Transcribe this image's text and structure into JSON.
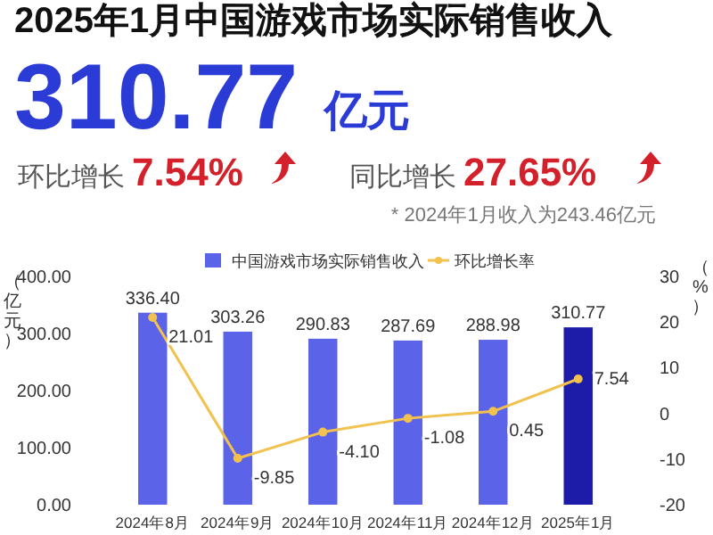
{
  "chart_data": {
    "type": "bar",
    "title": "2025年1月中国游戏市场实际销售收入",
    "annotations": [
      "310.77",
      "亿元",
      "环比增长",
      "7.54%",
      "同比增长",
      "27.65%",
      "* 2024年1月收入为243.46亿元"
    ],
    "categories": [
      "2024年8月",
      "2024年9月",
      "2024年10月",
      "2024年11月",
      "2024年12月",
      "2025年1月"
    ],
    "series": [
      {
        "name": "中国游戏市场实际销售收入",
        "color": "#5b63e8",
        "colors": [
          "#5b63e8",
          "#5b63e8",
          "#5b63e8",
          "#5b63e8",
          "#5b63e8",
          "#1c1ca8"
        ],
        "values": [
          336.4,
          303.26,
          290.83,
          287.69,
          288.98,
          310.77
        ],
        "value_labels": [
          "336.40",
          "303.26",
          "290.83",
          "287.69",
          "288.98",
          "310.77"
        ]
      },
      {
        "name": "环比增长率",
        "type": "line",
        "axis": "y2",
        "color": "#f2c14e",
        "values": [
          21.01,
          -9.85,
          -4.1,
          -1.08,
          0.45,
          7.54
        ],
        "value_labels": [
          "21.01",
          "-9.85",
          "-4.10",
          "-1.08",
          "0.45",
          "7.54"
        ]
      }
    ],
    "ylabel": "（亿元）",
    "y2label": "（%）",
    "ylim": [
      0,
      400
    ],
    "yticks": [
      {
        "value": 0,
        "label": "0.00"
      },
      {
        "value": 100,
        "label": "100.00"
      },
      {
        "value": 200,
        "label": "200.00"
      },
      {
        "value": 300,
        "label": "300.00"
      },
      {
        "value": 400,
        "label": "400.00"
      }
    ],
    "y2lim": [
      -20,
      30
    ],
    "y2ticks": [
      -20,
      -10,
      0,
      10,
      20,
      30
    ],
    "grid": false,
    "legend": "top",
    "marker": "circle"
  }
}
